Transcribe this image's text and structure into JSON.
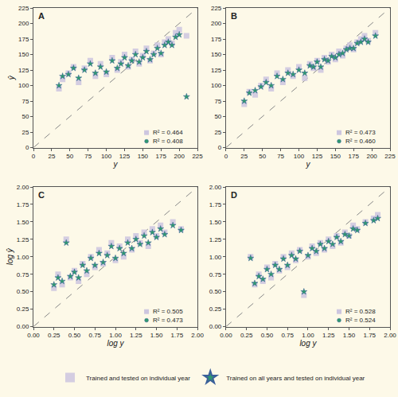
{
  "chart_data": [
    {
      "type": "scatter",
      "title": "A",
      "x_label": "y",
      "y_label": "ŷ",
      "xlim": [
        0,
        225
      ],
      "ylim": [
        0,
        225
      ],
      "xticks": [
        0,
        25,
        50,
        75,
        100,
        125,
        150,
        175,
        200,
        225
      ],
      "yticks": [
        0,
        25,
        50,
        75,
        100,
        125,
        150,
        175,
        200,
        225
      ],
      "grid": false,
      "legend": "lower right",
      "series": [
        {
          "name": "Trained and tested on individual year",
          "color": "#cdc6df",
          "marker": "square",
          "stat_label": "R² = 0.464",
          "x": [
            35,
            40,
            48,
            55,
            62,
            70,
            78,
            85,
            92,
            100,
            108,
            115,
            120,
            125,
            130,
            135,
            140,
            145,
            150,
            155,
            160,
            165,
            170,
            175,
            180,
            185,
            190,
            195,
            200,
            210
          ],
          "values": [
            95,
            110,
            120,
            130,
            105,
            128,
            140,
            115,
            135,
            118,
            145,
            125,
            138,
            150,
            130,
            142,
            155,
            135,
            148,
            160,
            140,
            152,
            165,
            150,
            170,
            175,
            168,
            185,
            190,
            180
          ]
        },
        {
          "name": "Trained on all years and tested on individual year",
          "color": "#2f9a6e",
          "marker": "star",
          "stat_label": "R² = 0.408",
          "x": [
            35,
            40,
            48,
            55,
            62,
            70,
            78,
            85,
            92,
            100,
            108,
            115,
            120,
            125,
            130,
            135,
            140,
            145,
            150,
            155,
            160,
            165,
            170,
            175,
            180,
            185,
            190,
            195,
            200,
            210
          ],
          "values": [
            100,
            115,
            118,
            128,
            112,
            125,
            135,
            120,
            130,
            122,
            140,
            128,
            135,
            145,
            132,
            140,
            150,
            138,
            145,
            155,
            142,
            150,
            160,
            152,
            165,
            170,
            165,
            178,
            182,
            82
          ]
        }
      ]
    },
    {
      "type": "scatter",
      "title": "B",
      "x_label": "y",
      "xlim": [
        0,
        225
      ],
      "ylim": [
        0,
        225
      ],
      "xticks": [
        0,
        25,
        50,
        75,
        100,
        125,
        150,
        175,
        200,
        225
      ],
      "yticks": [
        0,
        25,
        50,
        75,
        100,
        125,
        150,
        175,
        200,
        225
      ],
      "grid": false,
      "legend": "lower right",
      "series": [
        {
          "name": "Trained and tested on individual year",
          "color": "#cdc6df",
          "marker": "square",
          "stat_label": "R² = 0.473",
          "x": [
            25,
            32,
            40,
            48,
            55,
            62,
            70,
            78,
            85,
            92,
            100,
            108,
            115,
            120,
            125,
            130,
            135,
            140,
            145,
            150,
            155,
            160,
            165,
            170,
            175,
            180,
            185,
            190,
            195,
            205
          ],
          "values": [
            70,
            90,
            85,
            100,
            110,
            95,
            120,
            105,
            125,
            115,
            130,
            112,
            135,
            128,
            140,
            125,
            145,
            138,
            150,
            142,
            155,
            148,
            160,
            165,
            158,
            170,
            175,
            180,
            172,
            185
          ]
        },
        {
          "name": "Trained on all years and tested on individual year",
          "color": "#2f9a6e",
          "marker": "star",
          "stat_label": "R² = 0.460",
          "x": [
            25,
            32,
            40,
            48,
            55,
            62,
            70,
            78,
            85,
            92,
            100,
            108,
            115,
            120,
            125,
            130,
            135,
            140,
            145,
            150,
            155,
            160,
            165,
            170,
            175,
            180,
            185,
            190,
            195,
            205
          ],
          "values": [
            75,
            88,
            92,
            98,
            105,
            100,
            115,
            110,
            120,
            118,
            125,
            120,
            132,
            130,
            138,
            130,
            142,
            140,
            147,
            145,
            150,
            152,
            158,
            160,
            160,
            168,
            170,
            175,
            170,
            180
          ]
        }
      ]
    },
    {
      "type": "scatter",
      "title": "C",
      "x_label": "log y",
      "y_label": "log ŷ",
      "xlim": [
        0,
        2
      ],
      "ylim": [
        0,
        2
      ],
      "xticks": [
        {
          "value": 0,
          "label": "0.00"
        },
        {
          "value": 0.25,
          "label": "0.25"
        },
        {
          "value": 0.5,
          "label": "0.50"
        },
        {
          "value": 0.75,
          "label": "0.75"
        },
        {
          "value": 1,
          "label": "1.00"
        },
        {
          "value": 1.25,
          "label": "1.25"
        },
        {
          "value": 1.5,
          "label": "1.50"
        },
        {
          "value": 1.75,
          "label": "1.75"
        },
        {
          "value": 2,
          "label": "2.00"
        }
      ],
      "yticks": [
        {
          "value": 0,
          "label": "0.00"
        },
        {
          "value": 0.25,
          "label": "0.25"
        },
        {
          "value": 0.5,
          "label": "0.50"
        },
        {
          "value": 0.75,
          "label": "0.75"
        },
        {
          "value": 1,
          "label": "1.00"
        },
        {
          "value": 1.25,
          "label": "1.25"
        },
        {
          "value": 1.5,
          "label": "1.50"
        },
        {
          "value": 1.75,
          "label": "1.75"
        },
        {
          "value": 2,
          "label": "2.00"
        }
      ],
      "grid": false,
      "legend": "lower right",
      "series": [
        {
          "name": "Trained and tested on individual year",
          "color": "#cdc6df",
          "marker": "square",
          "stat_label": "R² = 0.505",
          "x": [
            0.25,
            0.3,
            0.35,
            0.4,
            0.45,
            0.5,
            0.55,
            0.6,
            0.65,
            0.7,
            0.75,
            0.8,
            0.85,
            0.9,
            0.95,
            1.0,
            1.05,
            1.1,
            1.15,
            1.2,
            1.25,
            1.3,
            1.35,
            1.4,
            1.45,
            1.5,
            1.55,
            1.6,
            1.7,
            1.8
          ],
          "values": [
            0.55,
            0.75,
            0.6,
            1.25,
            0.7,
            0.8,
            0.65,
            0.9,
            0.75,
            1.0,
            0.85,
            1.1,
            0.9,
            1.05,
            1.2,
            0.95,
            1.15,
            1.0,
            1.25,
            1.1,
            1.3,
            1.2,
            1.35,
            1.15,
            1.4,
            1.3,
            1.45,
            1.35,
            1.5,
            1.4
          ]
        },
        {
          "name": "Trained on all years and tested on individual year",
          "color": "#2f9a6e",
          "marker": "star",
          "stat_label": "R² = 0.473",
          "x": [
            0.25,
            0.3,
            0.35,
            0.4,
            0.45,
            0.5,
            0.55,
            0.6,
            0.65,
            0.7,
            0.75,
            0.8,
            0.85,
            0.9,
            0.95,
            1.0,
            1.05,
            1.1,
            1.15,
            1.2,
            1.25,
            1.3,
            1.35,
            1.4,
            1.45,
            1.5,
            1.55,
            1.6,
            1.7,
            1.8
          ],
          "values": [
            0.6,
            0.7,
            0.65,
            1.2,
            0.72,
            0.78,
            0.7,
            0.88,
            0.8,
            0.98,
            0.88,
            1.05,
            0.92,
            1.02,
            1.15,
            0.98,
            1.12,
            1.05,
            1.2,
            1.12,
            1.25,
            1.18,
            1.3,
            1.2,
            1.35,
            1.28,
            1.4,
            1.32,
            1.45,
            1.38
          ]
        }
      ]
    },
    {
      "type": "scatter",
      "title": "D",
      "x_label": "log y",
      "xlim": [
        0,
        2
      ],
      "ylim": [
        0,
        2
      ],
      "xticks": [
        {
          "value": 0,
          "label": "0.00"
        },
        {
          "value": 0.25,
          "label": "0.25"
        },
        {
          "value": 0.5,
          "label": "0.50"
        },
        {
          "value": 0.75,
          "label": "0.75"
        },
        {
          "value": 1,
          "label": "1.00"
        },
        {
          "value": 1.25,
          "label": "1.25"
        },
        {
          "value": 1.5,
          "label": "1.50"
        },
        {
          "value": 1.75,
          "label": "1.75"
        },
        {
          "value": 2,
          "label": "2.00"
        }
      ],
      "yticks": [
        {
          "value": 0,
          "label": "0.00"
        },
        {
          "value": 0.25,
          "label": "0.25"
        },
        {
          "value": 0.5,
          "label": "0.50"
        },
        {
          "value": 0.75,
          "label": "0.75"
        },
        {
          "value": 1,
          "label": "1.00"
        },
        {
          "value": 1.25,
          "label": "1.25"
        },
        {
          "value": 1.5,
          "label": "1.50"
        },
        {
          "value": 1.75,
          "label": "1.75"
        },
        {
          "value": 2,
          "label": "2.00"
        }
      ],
      "grid": false,
      "legend": "lower right",
      "series": [
        {
          "name": "Trained and tested on individual year",
          "color": "#cdc6df",
          "marker": "square",
          "stat_label": "R² = 0.528",
          "x": [
            0.3,
            0.35,
            0.4,
            0.45,
            0.5,
            0.55,
            0.6,
            0.65,
            0.7,
            0.75,
            0.8,
            0.85,
            0.9,
            0.95,
            1.0,
            1.05,
            1.1,
            1.15,
            1.2,
            1.25,
            1.3,
            1.35,
            1.4,
            1.45,
            1.5,
            1.55,
            1.6,
            1.7,
            1.8,
            1.85
          ],
          "values": [
            1.0,
            0.6,
            0.75,
            0.65,
            0.85,
            0.7,
            0.9,
            0.8,
            1.0,
            0.85,
            1.05,
            0.95,
            1.1,
            0.45,
            1.0,
            1.15,
            1.05,
            1.2,
            1.1,
            1.25,
            1.15,
            1.3,
            1.2,
            1.35,
            1.3,
            1.45,
            1.4,
            1.5,
            1.55,
            1.6
          ]
        },
        {
          "name": "Trained on all years and tested on individual year",
          "color": "#2f9a6e",
          "marker": "star",
          "stat_label": "R² = 0.524",
          "x": [
            0.3,
            0.35,
            0.4,
            0.45,
            0.5,
            0.55,
            0.6,
            0.65,
            0.7,
            0.75,
            0.8,
            0.85,
            0.9,
            0.95,
            1.0,
            1.05,
            1.1,
            1.15,
            1.2,
            1.25,
            1.3,
            1.35,
            1.4,
            1.45,
            1.5,
            1.55,
            1.6,
            1.7,
            1.8,
            1.85
          ],
          "values": [
            0.98,
            0.62,
            0.72,
            0.68,
            0.82,
            0.75,
            0.88,
            0.82,
            0.97,
            0.88,
            1.02,
            0.97,
            1.08,
            0.5,
            1.02,
            1.12,
            1.08,
            1.18,
            1.12,
            1.22,
            1.18,
            1.28,
            1.22,
            1.32,
            1.3,
            1.4,
            1.38,
            1.48,
            1.52,
            1.55
          ]
        }
      ]
    }
  ]
}
